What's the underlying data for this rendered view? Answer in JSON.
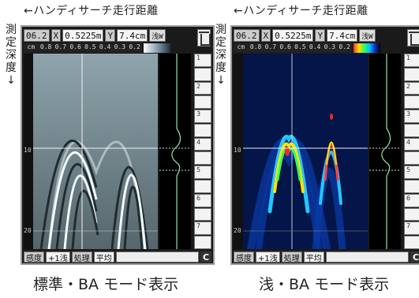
{
  "captions": {
    "top_left": "←ハンディサーチ走行距離",
    "top_right": "←ハンディサーチ走行距離",
    "side_left": [
      "測",
      "定",
      "深",
      "度",
      "↓"
    ],
    "side_right": [
      "測",
      "定",
      "深",
      "度",
      "↓"
    ],
    "bottom_left": "標準・BA モード表示",
    "bottom_right": "浅・BA モード表示"
  },
  "panels": [
    {
      "name": "standard",
      "header": {
        "code": "06.2",
        "x_label": "X",
        "x_value": "0.5225m",
        "y_label": "Y",
        "y_value": "7.4cm",
        "mode": "浅W"
      },
      "scale_unit": "cm",
      "scale_values": [
        "0.8",
        "0.7",
        "0.6",
        "0.5",
        "0.4",
        "0.3",
        "0.2"
      ],
      "depth_ticks": [
        "10",
        "20"
      ],
      "buttons": [
        "1",
        "2",
        "3",
        "4",
        "5",
        "6",
        "7"
      ],
      "footer": {
        "sens_label": "感度",
        "sens_value": "+1浅",
        "proc_label": "処理",
        "proc_value": "平均",
        "c": "C"
      }
    },
    {
      "name": "shallow",
      "header": {
        "code": "06.2",
        "x_label": "X",
        "x_value": "0.5225m",
        "y_label": "Y",
        "y_value": "7.4cm",
        "mode": "浅W"
      },
      "scale_unit": "cm",
      "scale_values": [
        "0.8",
        "0.7",
        "0.6",
        "0.5",
        "0.4",
        "0.3",
        "0.2"
      ],
      "depth_ticks": [
        "10",
        "20"
      ],
      "buttons": [
        "1",
        "2",
        "3",
        "4",
        "5",
        "6",
        "7"
      ],
      "footer": {
        "sens_label": "感度",
        "sens_value": "+1浅",
        "proc_label": "処理",
        "proc_value": "平均",
        "c": "C"
      }
    }
  ],
  "colors": {
    "grayscale_bg": "#6d7f86",
    "colormap_bg": "#00195a",
    "wave": "#8fe6a8"
  }
}
